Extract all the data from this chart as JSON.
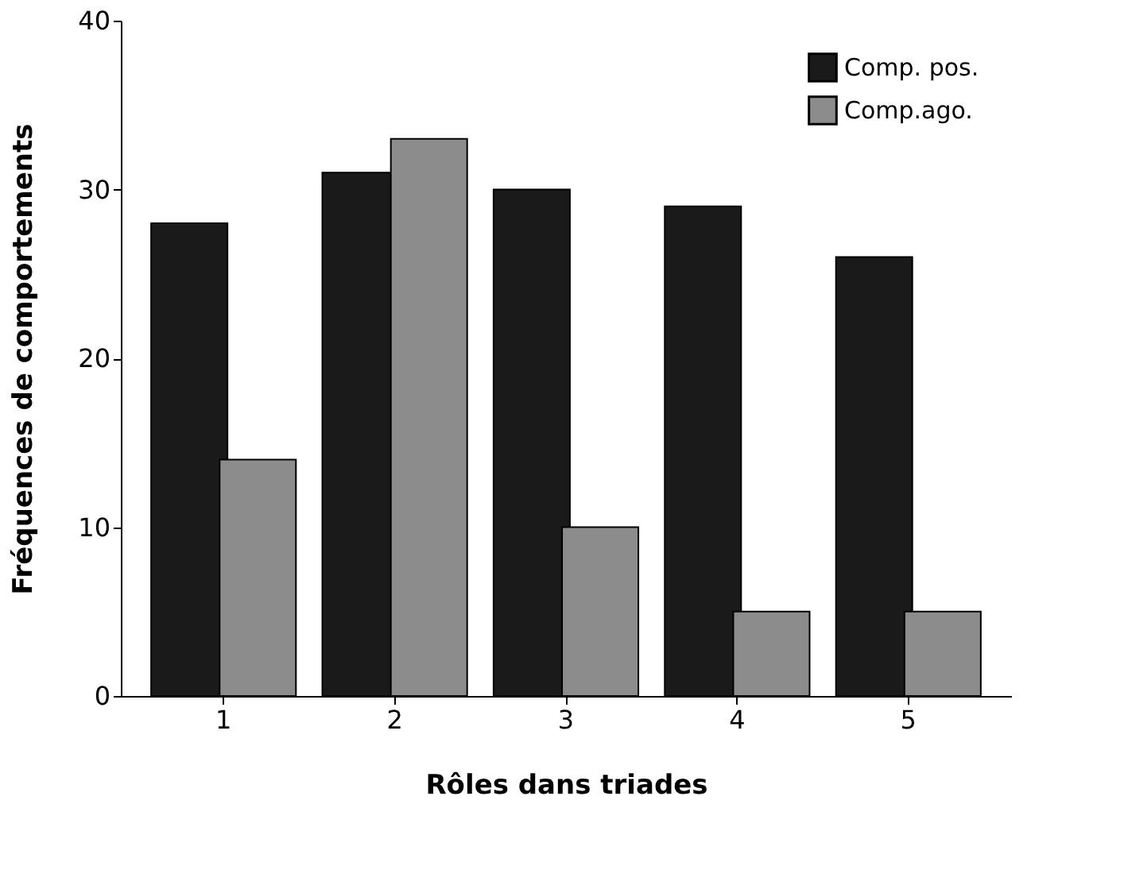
{
  "chart_data": {
    "type": "bar",
    "xlabel": "Rôles dans triades",
    "ylabel": "Fréquences de comportements",
    "categories": [
      "1",
      "2",
      "3",
      "4",
      "5"
    ],
    "series": [
      {
        "name": "Comp. pos.",
        "color": "#1a1a1a",
        "values": [
          28,
          31,
          30,
          29,
          26
        ]
      },
      {
        "name": "Comp.ago.",
        "color": "#8c8c8c",
        "values": [
          14,
          33,
          10,
          5,
          5
        ]
      }
    ],
    "ylim": [
      0,
      40
    ],
    "yticks": [
      0,
      10,
      20,
      30,
      40
    ],
    "grid": false,
    "legend": "top right"
  }
}
